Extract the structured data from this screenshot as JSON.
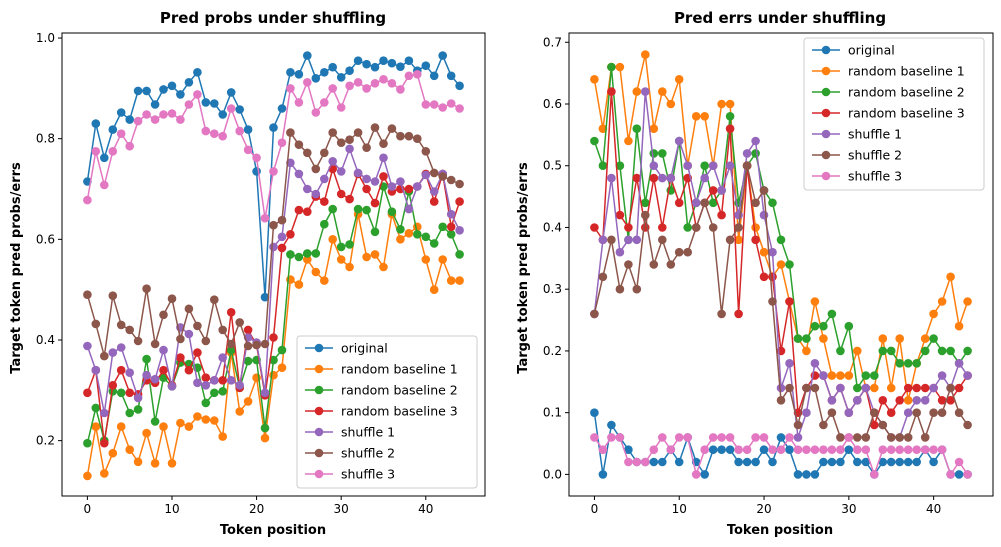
{
  "chart_data": [
    {
      "type": "line",
      "title": "Pred probs under shuffling",
      "xlabel": "Token position",
      "ylabel": "Target token pred probs/errs",
      "xlim": [
        -3,
        47
      ],
      "ylim": [
        0.09,
        1.01
      ],
      "xticks": [
        0,
        10,
        20,
        30,
        40
      ],
      "yticks": [
        0.2,
        0.4,
        0.6,
        0.8,
        1.0
      ],
      "ytick_labels": [
        "0.2",
        "0.4",
        "0.6",
        "0.8",
        "1.0"
      ],
      "legend_position": "lower-right",
      "x": [
        0,
        1,
        2,
        3,
        4,
        5,
        6,
        7,
        8,
        9,
        10,
        11,
        12,
        13,
        14,
        15,
        16,
        17,
        18,
        19,
        20,
        21,
        22,
        23,
        24,
        25,
        26,
        27,
        28,
        29,
        30,
        31,
        32,
        33,
        34,
        35,
        36,
        37,
        38,
        39,
        40,
        41,
        42,
        43,
        44
      ],
      "series": [
        {
          "name": "original",
          "color": "#1f77b4",
          "values": [
            0.715,
            0.83,
            0.762,
            0.818,
            0.852,
            0.838,
            0.895,
            0.895,
            0.868,
            0.898,
            0.905,
            0.888,
            0.912,
            0.932,
            0.872,
            0.87,
            0.848,
            0.892,
            0.858,
            0.818,
            0.735,
            0.485,
            0.822,
            0.86,
            0.932,
            0.928,
            0.965,
            0.92,
            0.932,
            0.942,
            0.922,
            0.935,
            0.955,
            0.948,
            0.942,
            0.955,
            0.95,
            0.943,
            0.955,
            0.935,
            0.945,
            0.925,
            0.965,
            0.925,
            0.905
          ]
        },
        {
          "name": "random baseline 1",
          "color": "#ff7f0e",
          "values": [
            0.13,
            0.228,
            0.135,
            0.175,
            0.228,
            0.182,
            0.158,
            0.215,
            0.155,
            0.228,
            0.155,
            0.235,
            0.228,
            0.248,
            0.242,
            0.24,
            0.208,
            0.375,
            0.258,
            0.278,
            0.325,
            0.205,
            0.33,
            0.345,
            0.52,
            0.51,
            0.56,
            0.535,
            0.518,
            0.6,
            0.56,
            0.545,
            0.65,
            0.565,
            0.57,
            0.545,
            0.65,
            0.6,
            0.612,
            0.625,
            0.56,
            0.5,
            0.56,
            0.518,
            0.518
          ]
        },
        {
          "name": "random baseline 2",
          "color": "#2ca02c",
          "values": [
            0.195,
            0.265,
            0.2,
            0.298,
            0.295,
            0.255,
            0.262,
            0.362,
            0.238,
            0.325,
            0.308,
            0.355,
            0.352,
            0.345,
            0.275,
            0.295,
            0.298,
            0.38,
            0.305,
            0.358,
            0.36,
            0.225,
            0.36,
            0.38,
            0.57,
            0.565,
            0.572,
            0.572,
            0.63,
            0.66,
            0.585,
            0.59,
            0.66,
            0.658,
            0.615,
            0.705,
            0.655,
            0.62,
            0.695,
            0.61,
            0.605,
            0.592,
            0.625,
            0.61,
            0.57
          ]
        },
        {
          "name": "random baseline 3",
          "color": "#d62728",
          "values": [
            0.295,
            0.34,
            0.195,
            0.31,
            0.34,
            0.295,
            0.292,
            0.32,
            0.315,
            0.34,
            0.31,
            0.365,
            0.34,
            0.375,
            0.325,
            0.32,
            0.32,
            0.455,
            0.305,
            0.42,
            0.39,
            0.29,
            0.405,
            0.583,
            0.61,
            0.658,
            0.655,
            0.685,
            0.675,
            0.74,
            0.69,
            0.68,
            0.73,
            0.7,
            0.672,
            0.725,
            0.695,
            0.7,
            0.7,
            0.705,
            0.73,
            0.675,
            0.73,
            0.625,
            0.675
          ]
        },
        {
          "name": "shuffle 1",
          "color": "#9467bd",
          "values": [
            0.388,
            0.34,
            0.255,
            0.375,
            0.385,
            0.335,
            0.285,
            0.33,
            0.322,
            0.38,
            0.308,
            0.425,
            0.412,
            0.315,
            0.31,
            0.32,
            0.365,
            0.32,
            0.31,
            0.405,
            0.395,
            0.295,
            0.585,
            0.605,
            0.752,
            0.73,
            0.7,
            0.69,
            0.72,
            0.755,
            0.735,
            0.78,
            0.732,
            0.72,
            0.715,
            0.762,
            0.705,
            0.715,
            0.66,
            0.705,
            0.728,
            0.695,
            0.73,
            0.65,
            0.618
          ]
        },
        {
          "name": "shuffle 2",
          "color": "#8c564b",
          "values": [
            0.49,
            0.432,
            0.368,
            0.488,
            0.43,
            0.42,
            0.398,
            0.502,
            0.392,
            0.45,
            0.482,
            0.402,
            0.462,
            0.428,
            0.398,
            0.48,
            0.42,
            0.392,
            0.435,
            0.388,
            0.39,
            0.392,
            0.628,
            0.638,
            0.812,
            0.788,
            0.772,
            0.74,
            0.772,
            0.812,
            0.792,
            0.798,
            0.812,
            0.782,
            0.822,
            0.79,
            0.82,
            0.805,
            0.805,
            0.8,
            0.775,
            0.732,
            0.725,
            0.718,
            0.71
          ]
        },
        {
          "name": "shuffle 3",
          "color": "#e377c2",
          "values": [
            0.678,
            0.775,
            0.708,
            0.775,
            0.81,
            0.785,
            0.835,
            0.848,
            0.838,
            0.848,
            0.85,
            0.838,
            0.868,
            0.888,
            0.815,
            0.81,
            0.805,
            0.86,
            0.815,
            0.778,
            0.762,
            0.642,
            0.735,
            0.792,
            0.9,
            0.872,
            0.912,
            0.852,
            0.872,
            0.9,
            0.862,
            0.905,
            0.912,
            0.9,
            0.91,
            0.918,
            0.91,
            0.898,
            0.925,
            0.928,
            0.868,
            0.868,
            0.862,
            0.87,
            0.86
          ]
        }
      ]
    },
    {
      "type": "line",
      "title": "Pred errs under shuffling",
      "xlabel": "Token position",
      "ylabel": "Target token pred probs/errs",
      "xlim": [
        -3,
        47
      ],
      "ylim": [
        -0.035,
        0.715
      ],
      "xticks": [
        0,
        10,
        20,
        30,
        40
      ],
      "yticks": [
        0.0,
        0.1,
        0.2,
        0.3,
        0.4,
        0.5,
        0.6,
        0.7
      ],
      "ytick_labels": [
        "0.0",
        "0.1",
        "0.2",
        "0.3",
        "0.4",
        "0.5",
        "0.6",
        "0.7"
      ],
      "legend_position": "upper-right",
      "x": [
        0,
        1,
        2,
        3,
        4,
        5,
        6,
        7,
        8,
        9,
        10,
        11,
        12,
        13,
        14,
        15,
        16,
        17,
        18,
        19,
        20,
        21,
        22,
        23,
        24,
        25,
        26,
        27,
        28,
        29,
        30,
        31,
        32,
        33,
        34,
        35,
        36,
        37,
        38,
        39,
        40,
        41,
        42,
        43,
        44
      ],
      "series": [
        {
          "name": "original",
          "color": "#1f77b4",
          "values": [
            0.1,
            0.0,
            0.08,
            0.06,
            0.04,
            0.02,
            0.02,
            0.02,
            0.02,
            0.04,
            0.02,
            0.06,
            0.02,
            0.0,
            0.04,
            0.04,
            0.04,
            0.02,
            0.02,
            0.02,
            0.04,
            0.02,
            0.06,
            0.04,
            0.0,
            0.0,
            0.0,
            0.02,
            0.02,
            0.02,
            0.04,
            0.02,
            0.02,
            0.0,
            0.02,
            0.02,
            0.02,
            0.02,
            0.02,
            0.04,
            0.02,
            0.04,
            0.0,
            0.0,
            0.0
          ]
        },
        {
          "name": "random baseline 1",
          "color": "#ff7f0e",
          "values": [
            0.64,
            0.56,
            0.66,
            0.66,
            0.54,
            0.62,
            0.68,
            0.56,
            0.62,
            0.6,
            0.64,
            0.5,
            0.58,
            0.58,
            0.5,
            0.6,
            0.6,
            0.38,
            0.5,
            0.4,
            0.36,
            0.32,
            0.34,
            0.28,
            0.22,
            0.2,
            0.28,
            0.22,
            0.16,
            0.16,
            0.16,
            0.2,
            0.14,
            0.14,
            0.22,
            0.14,
            0.22,
            0.12,
            0.18,
            0.22,
            0.26,
            0.28,
            0.32,
            0.24,
            0.28
          ]
        },
        {
          "name": "random baseline 2",
          "color": "#2ca02c",
          "values": [
            0.54,
            0.5,
            0.66,
            0.5,
            0.38,
            0.56,
            0.44,
            0.52,
            0.52,
            0.46,
            0.54,
            0.4,
            0.44,
            0.5,
            0.44,
            0.46,
            0.58,
            0.44,
            0.5,
            0.52,
            0.46,
            0.44,
            0.38,
            0.34,
            0.22,
            0.22,
            0.24,
            0.24,
            0.26,
            0.2,
            0.24,
            0.14,
            0.16,
            0.16,
            0.2,
            0.2,
            0.18,
            0.18,
            0.18,
            0.2,
            0.22,
            0.2,
            0.2,
            0.18,
            0.2
          ]
        },
        {
          "name": "random baseline 3",
          "color": "#d62728",
          "values": [
            0.4,
            0.38,
            0.62,
            0.42,
            0.4,
            0.48,
            0.4,
            0.48,
            0.4,
            0.48,
            0.44,
            0.48,
            0.4,
            0.44,
            0.46,
            0.42,
            0.56,
            0.26,
            0.5,
            0.38,
            0.32,
            0.32,
            0.2,
            0.28,
            0.1,
            0.14,
            0.16,
            0.16,
            0.12,
            0.14,
            0.1,
            0.12,
            0.14,
            0.08,
            0.12,
            0.1,
            0.12,
            0.14,
            0.14,
            0.14,
            0.14,
            0.12,
            0.12,
            0.14,
            0.16
          ]
        },
        {
          "name": "shuffle 1",
          "color": "#9467bd",
          "values": [
            0.26,
            0.38,
            0.48,
            0.36,
            0.38,
            0.38,
            0.62,
            0.5,
            0.48,
            0.48,
            0.54,
            0.5,
            0.44,
            0.48,
            0.5,
            0.46,
            0.5,
            0.42,
            0.52,
            0.54,
            0.42,
            0.36,
            0.14,
            0.18,
            0.06,
            0.1,
            0.18,
            0.16,
            0.12,
            0.14,
            0.1,
            0.12,
            0.14,
            0.1,
            0.08,
            0.06,
            0.06,
            0.1,
            0.12,
            0.12,
            0.14,
            0.16,
            0.14,
            0.18,
            0.16
          ]
        },
        {
          "name": "shuffle 2",
          "color": "#8c564b",
          "values": [
            0.26,
            0.32,
            0.38,
            0.3,
            0.34,
            0.3,
            0.42,
            0.34,
            0.38,
            0.34,
            0.36,
            0.36,
            0.4,
            0.44,
            0.4,
            0.26,
            0.38,
            0.4,
            0.5,
            0.44,
            0.46,
            0.28,
            0.12,
            0.14,
            0.08,
            0.14,
            0.14,
            0.08,
            0.1,
            0.06,
            0.06,
            0.06,
            0.06,
            0.1,
            0.08,
            0.06,
            0.06,
            0.06,
            0.1,
            0.06,
            0.1,
            0.1,
            0.14,
            0.1,
            0.08
          ]
        },
        {
          "name": "shuffle 3",
          "color": "#e377c2",
          "values": [
            0.06,
            0.04,
            0.06,
            0.06,
            0.02,
            0.02,
            0.02,
            0.04,
            0.06,
            0.04,
            0.06,
            0.06,
            0.0,
            0.04,
            0.06,
            0.06,
            0.06,
            0.04,
            0.04,
            0.06,
            0.06,
            0.04,
            0.04,
            0.06,
            0.04,
            0.04,
            0.04,
            0.04,
            0.04,
            0.04,
            0.06,
            0.04,
            0.04,
            0.0,
            0.04,
            0.04,
            0.04,
            0.04,
            0.04,
            0.04,
            0.04,
            0.04,
            0.0,
            0.02,
            0.0
          ]
        }
      ]
    }
  ]
}
